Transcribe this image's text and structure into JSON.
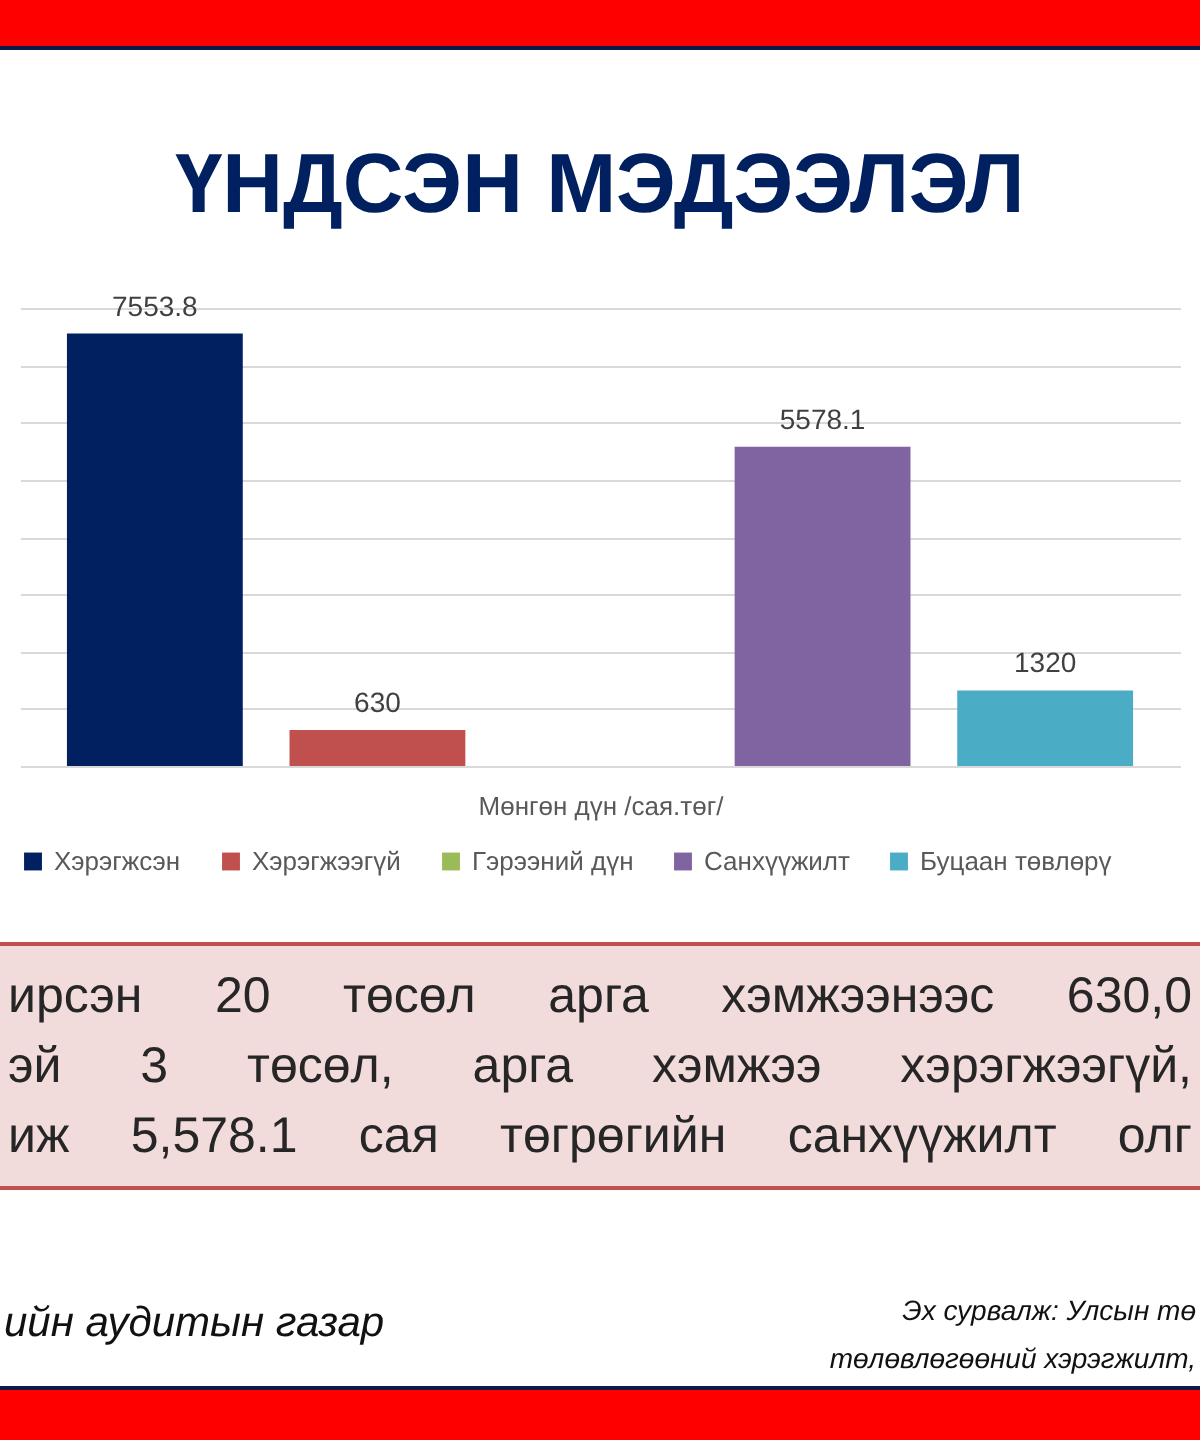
{
  "chart_data": {
    "type": "bar",
    "title": "ҮНДСЭН МЭДЭЭЛЭЛ",
    "categories": [
      null
    ],
    "xlabel": "Мөнгөн дүн /сая.төг/",
    "series": [
      {
        "name": "Хэрэгжсэн",
        "color": "#002060",
        "values": [
          7553.8
        ]
      },
      {
        "name": "Хэрэгжээгүй",
        "color": "#c0504d",
        "values": [
          630
        ]
      },
      {
        "name": "Гэрээний дүн",
        "color": "#9bbb59",
        "values": [
          null
        ]
      },
      {
        "name": "Санхүүжилт",
        "color": "#8064a2",
        "values": [
          5578.1
        ]
      },
      {
        "name": "Буцаан төвлөрү",
        "color": "#4bacc6",
        "values": [
          1320
        ]
      }
    ],
    "data_labels": true,
    "ylim": [
      0,
      8000
    ],
    "grid": "y",
    "legend": "bottom",
    "annotations": [
      "ирсэн 20 төсөл арга хэмжээнээс 630,0",
      "эй 3 төсөл, арга хэмжээ хэрэгжээгүй,",
      "иж 5,578.1 сая төгрөгийн санхүүжилт олг",
      "ийн аудитын газар",
      "Эх сурвалж: Улсын тө",
      "төлөвлөгөөний хэрэгжилт,"
    ]
  }
}
